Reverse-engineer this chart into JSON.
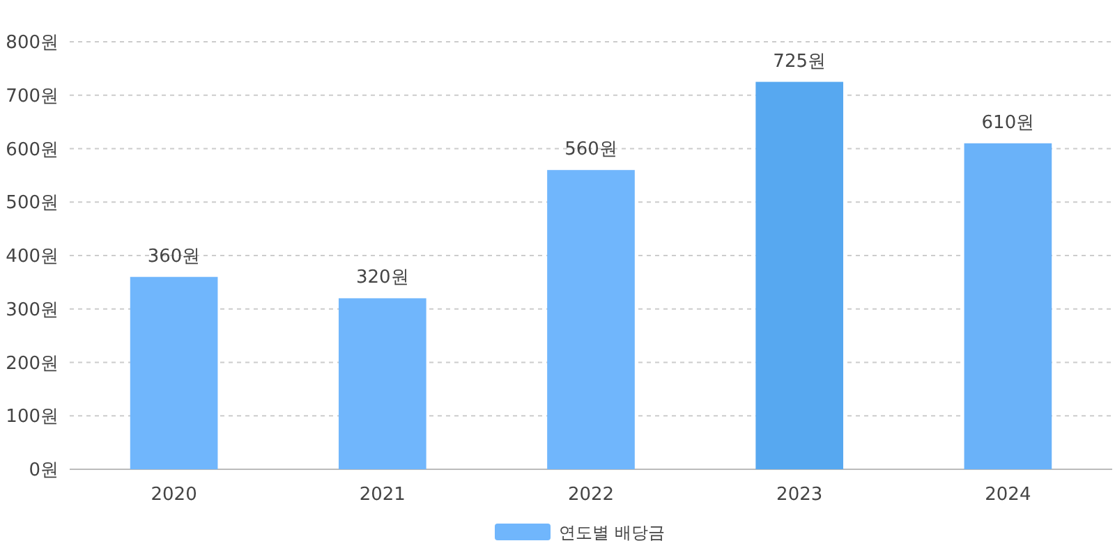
{
  "chart_data": {
    "type": "bar",
    "categories": [
      "2020",
      "2021",
      "2022",
      "2023",
      "2024"
    ],
    "series": [
      {
        "name": "연도별 배당금",
        "color": "#70b6fc",
        "colors": [
          "#70b6fc",
          "#70b6fc",
          "#70b6fc",
          "#57a8f0",
          "#6ab2f9"
        ],
        "values": [
          360,
          320,
          560,
          725,
          610
        ],
        "value_labels": [
          "360원",
          "320원",
          "560원",
          "725원",
          "610원"
        ]
      }
    ],
    "ylim": [
      0,
      800
    ],
    "yticks": [
      {
        "value": 0,
        "label": "0원"
      },
      {
        "value": 100,
        "label": "100원"
      },
      {
        "value": 200,
        "label": "200원"
      },
      {
        "value": 300,
        "label": "300원"
      },
      {
        "value": 400,
        "label": "400원"
      },
      {
        "value": 500,
        "label": "500원"
      },
      {
        "value": 600,
        "label": "600원"
      },
      {
        "value": 700,
        "label": "700원"
      },
      {
        "value": 800,
        "label": "800원"
      }
    ],
    "grid": "y",
    "legend": "bottom"
  }
}
